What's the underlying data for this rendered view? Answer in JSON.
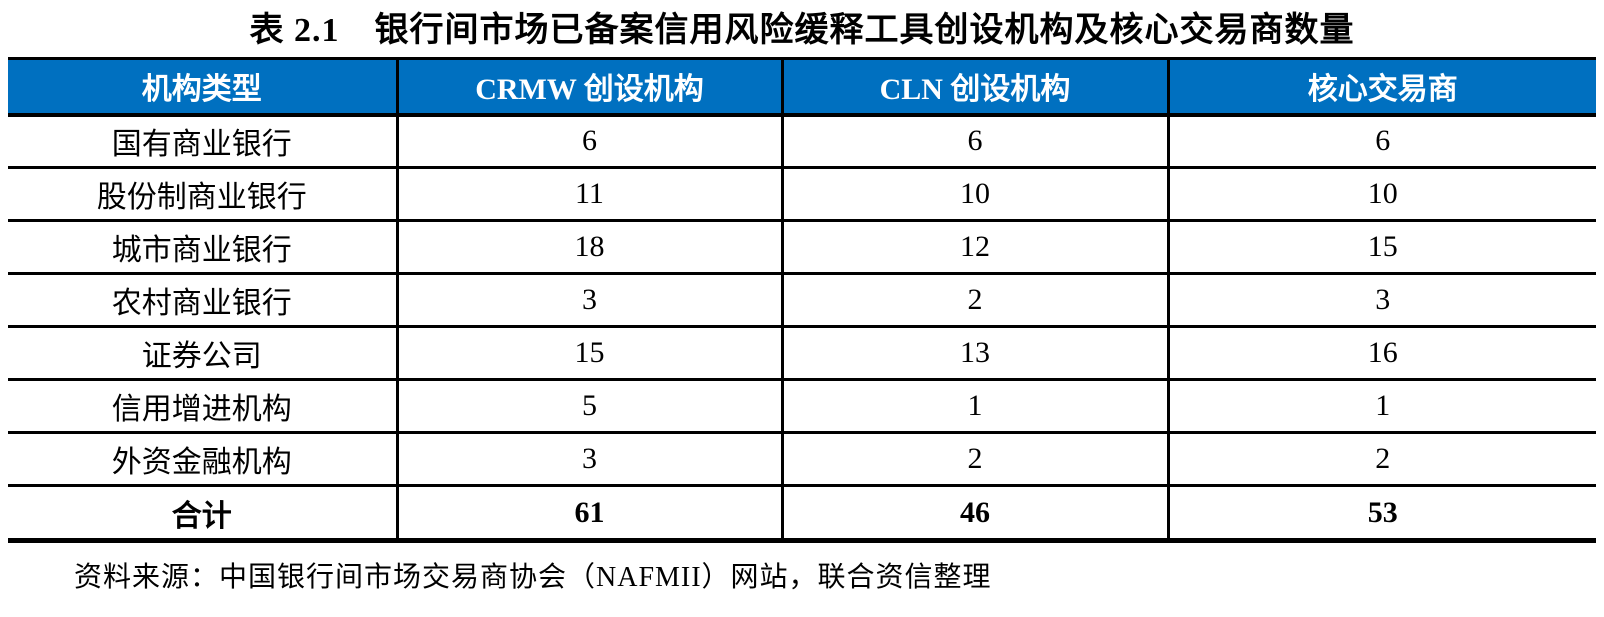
{
  "title": "表 2.1　银行间市场已备案信用风险缓释工具创设机构及核心交易商数量",
  "table": {
    "columns": [
      "机构类型",
      "CRMW 创设机构",
      "CLN 创设机构",
      "核心交易商"
    ],
    "rows": [
      [
        "国有商业银行",
        "6",
        "6",
        "6"
      ],
      [
        "股份制商业银行",
        "11",
        "10",
        "10"
      ],
      [
        "城市商业银行",
        "18",
        "12",
        "15"
      ],
      [
        "农村商业银行",
        "3",
        "2",
        "3"
      ],
      [
        "证券公司",
        "15",
        "13",
        "16"
      ],
      [
        "信用增进机构",
        "5",
        "1",
        "1"
      ],
      [
        "外资金融机构",
        "3",
        "2",
        "2"
      ]
    ],
    "total_row": [
      "合计",
      "61",
      "46",
      "53"
    ]
  },
  "source": "资料来源：中国银行间市场交易商协会（NAFMII）网站，联合资信整理",
  "colors": {
    "header_bg": "#0070C0",
    "header_text": "#FFFFFF",
    "border": "#000000"
  }
}
